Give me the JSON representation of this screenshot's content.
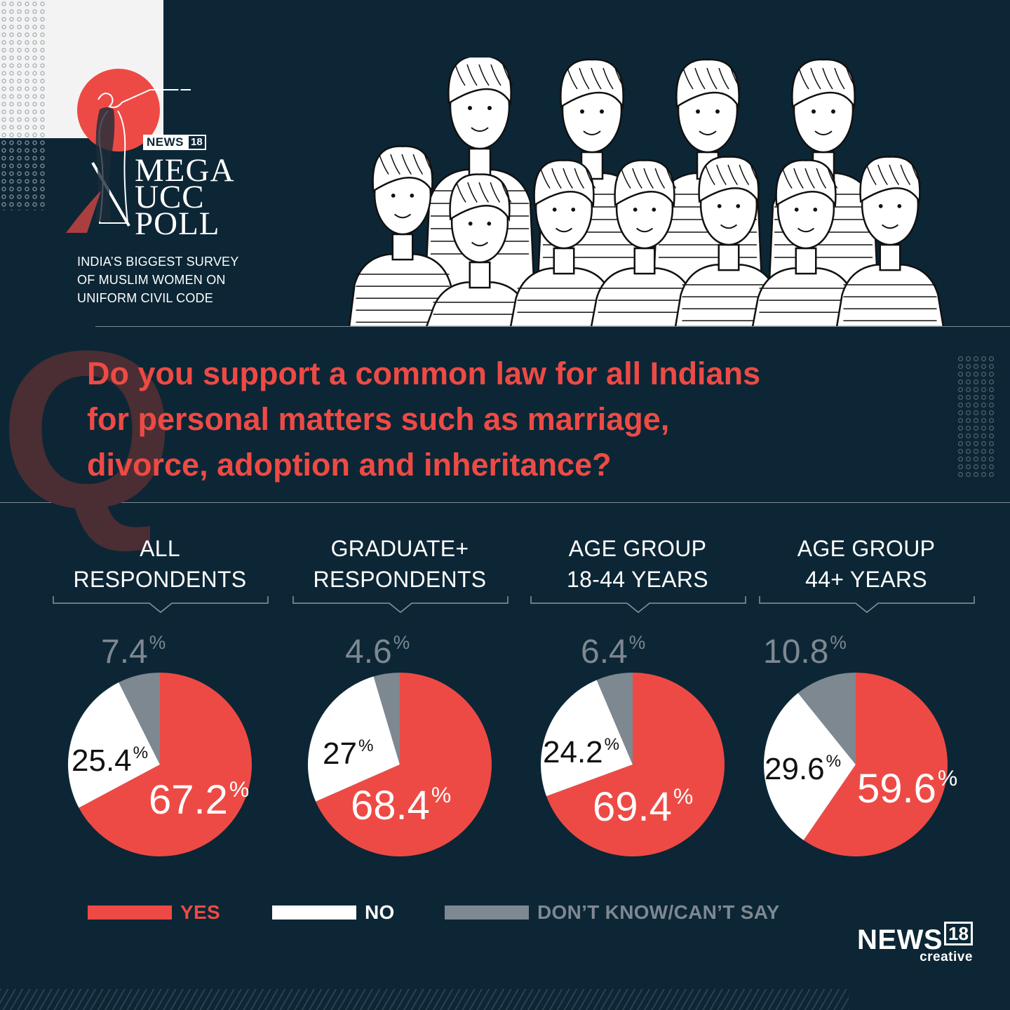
{
  "branding": {
    "news18_badge": "NEWS",
    "news18_badge_num": "18",
    "poll_title_lines": [
      "MEGA",
      "UCC",
      "POLL"
    ],
    "subtitle_lines": [
      "INDIA’S BIGGEST SURVEY",
      "OF MUSLIM WOMEN ON",
      "UNIFORM CIVIL CODE"
    ],
    "footer_logo_word": "NEWS",
    "footer_logo_num": "18",
    "footer_logo_sub": "creative"
  },
  "question": {
    "letter": "Q",
    "lines": [
      "Do you support a common law for all Indians",
      "for personal matters such as marriage,",
      "divorce, adoption and inheritance?"
    ]
  },
  "colors": {
    "yes": "#ee4a45",
    "no": "#ffffff",
    "dont_know": "#7e8891",
    "background": "#0c2635"
  },
  "legend": [
    {
      "label": "YES",
      "color": "#ee4a45"
    },
    {
      "label": "NO",
      "color": "#ffffff"
    },
    {
      "label": "DON’T KNOW/CAN’T SAY",
      "color": "#7e8891"
    }
  ],
  "groups": [
    {
      "label_lines": [
        "ALL",
        "RESPONDENTS"
      ],
      "yes_label": "67.2",
      "no_label": "25.4",
      "dk_label": "7.4"
    },
    {
      "label_lines": [
        "GRADUATE+",
        "RESPONDENTS"
      ],
      "yes_label": "68.4",
      "no_label": "27",
      "dk_label": "4.6"
    },
    {
      "label_lines": [
        "AGE GROUP",
        "18-44 YEARS"
      ],
      "yes_label": "69.4",
      "no_label": "24.2",
      "dk_label": "6.4"
    },
    {
      "label_lines": [
        "AGE GROUP",
        "44+ YEARS"
      ],
      "yes_label": "59.6",
      "no_label": "29.6",
      "dk_label": "10.8"
    }
  ],
  "percent_sign": "%",
  "chart_data": [
    {
      "type": "pie",
      "title": "ALL RESPONDENTS",
      "categories": [
        "YES",
        "NO",
        "DON’T KNOW/CAN’T SAY"
      ],
      "values": [
        67.2,
        25.4,
        7.4
      ]
    },
    {
      "type": "pie",
      "title": "GRADUATE+ RESPONDENTS",
      "categories": [
        "YES",
        "NO",
        "DON’T KNOW/CAN’T SAY"
      ],
      "values": [
        68.4,
        27,
        4.6
      ]
    },
    {
      "type": "pie",
      "title": "AGE GROUP 18-44 YEARS",
      "categories": [
        "YES",
        "NO",
        "DON’T KNOW/CAN’T SAY"
      ],
      "values": [
        69.4,
        24.2,
        6.4
      ]
    },
    {
      "type": "pie",
      "title": "AGE GROUP 44+ YEARS",
      "categories": [
        "YES",
        "NO",
        "DON’T KNOW/CAN’T SAY"
      ],
      "values": [
        59.6,
        29.6,
        10.8
      ]
    }
  ]
}
